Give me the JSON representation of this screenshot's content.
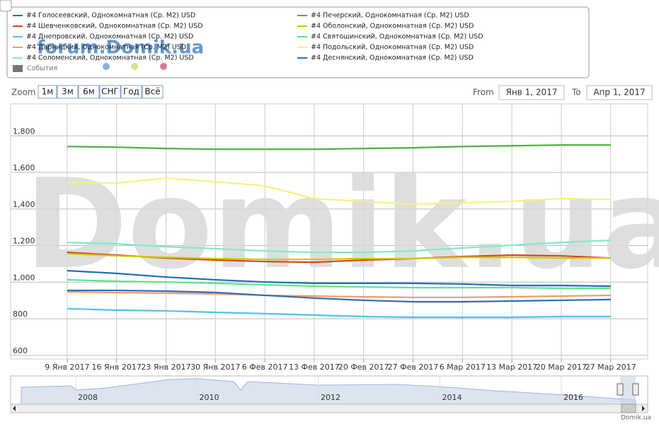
{
  "chart_data": {
    "type": "line",
    "categories": [
      "9 Янв 2017",
      "16 Янв 2017",
      "23 Янв 2017",
      "30 Янв 2017",
      "6 Фев 2017",
      "13 Фев 2017",
      "20 Фев 2017",
      "27 Фев 2017",
      "6 Мар 2017",
      "13 Мар 2017",
      "20 Мар 2017",
      "27 Мар 2017"
    ],
    "series": [
      {
        "name": "#4 Голосеевский, Однокомнатная (Ср. М2) USD",
        "color": "#1f6fb4",
        "values": [
          1063,
          1048,
          1028,
          1013,
          1001,
          994,
          994,
          994,
          990,
          982,
          982,
          978
        ]
      },
      {
        "name": "#4 Шевченковский, Однокомнатная (Ср. М2) USD",
        "color": "#d9441a",
        "values": [
          1163,
          1148,
          1132,
          1121,
          1113,
          1109,
          1121,
          1129,
          1140,
          1148,
          1144,
          1132
        ]
      },
      {
        "name": "#4 Днепровский, Однокомнатная (Ср. М2) USD",
        "color": "#4cc3e6",
        "values": [
          855,
          847,
          843,
          835,
          828,
          820,
          812,
          808,
          808,
          808,
          812,
          812
        ]
      },
      {
        "name": "#4 Дарницкий, Однокомнатная (Ср. М2) USD",
        "color": "#f09a6a",
        "values": [
          947,
          943,
          940,
          936,
          928,
          924,
          920,
          917,
          917,
          920,
          924,
          928
        ]
      },
      {
        "name": "#4 Соломенский, Однокомнатная (Ср. М2) USD",
        "color": "#7eebc3",
        "values": [
          1217,
          1210,
          1194,
          1183,
          1171,
          1163,
          1163,
          1171,
          1187,
          1202,
          1217,
          1229
        ]
      },
      {
        "name": "#4 Печерский, Однокомнатная (Ср. М2) USD",
        "color": "#4caf3f",
        "values": [
          1742,
          1738,
          1731,
          1727,
          1727,
          1727,
          1731,
          1735,
          1742,
          1746,
          1750,
          1750
        ]
      },
      {
        "name": "#4 Оболонский, Однокомнатная (Ср. М2) USD",
        "color": "#cccc00",
        "values": [
          1156,
          1144,
          1136,
          1129,
          1125,
          1125,
          1129,
          1129,
          1136,
          1136,
          1132,
          1132
        ]
      },
      {
        "name": "#4 Святошинский, Однокомнатная (Ср. М2) USD",
        "color": "#5ee38a",
        "values": [
          1013,
          1005,
          1001,
          994,
          986,
          978,
          974,
          970,
          970,
          970,
          967,
          967
        ]
      },
      {
        "name": "#4 Подольский, Однокомнатная (Ср. М2) USD",
        "color": "#f7f07c",
        "values": [
          1546,
          1542,
          1569,
          1549,
          1527,
          1457,
          1442,
          1426,
          1434,
          1442,
          1457,
          1453
        ]
      },
      {
        "name": "#4 Деснянский, Однокомнатная (Ср. М2) USD",
        "color": "#2b6fb8",
        "values": [
          955,
          955,
          951,
          944,
          928,
          913,
          901,
          893,
          893,
          897,
          901,
          905
        ]
      }
    ],
    "events_label": "События",
    "ylim": [
      580,
      1975
    ],
    "yticks": [
      600,
      800,
      {
        "value": 1000,
        "label": "1,000"
      },
      {
        "value": 1200,
        "label": "1,200"
      },
      {
        "value": 1400,
        "label": "1,400"
      },
      {
        "value": 1600,
        "label": "1,600"
      },
      {
        "value": 1800,
        "label": "1,800"
      }
    ],
    "grid": true,
    "range_selector": {
      "zoom_label": "Zoom",
      "buttons": [
        "1м",
        "3м",
        "6м",
        "СНГ",
        "Год",
        "Всё"
      ],
      "from_label": "From",
      "from": "Янв 1, 2017",
      "to_label": "To",
      "to": "Апр 1, 2017"
    },
    "navigator_years": [
      "2008",
      "2010",
      "2012",
      "2014",
      "2016"
    ],
    "watermark_small": "forum.Domik.ua",
    "watermark_big": "Domik.ua",
    "credit": "Domik.ua"
  }
}
